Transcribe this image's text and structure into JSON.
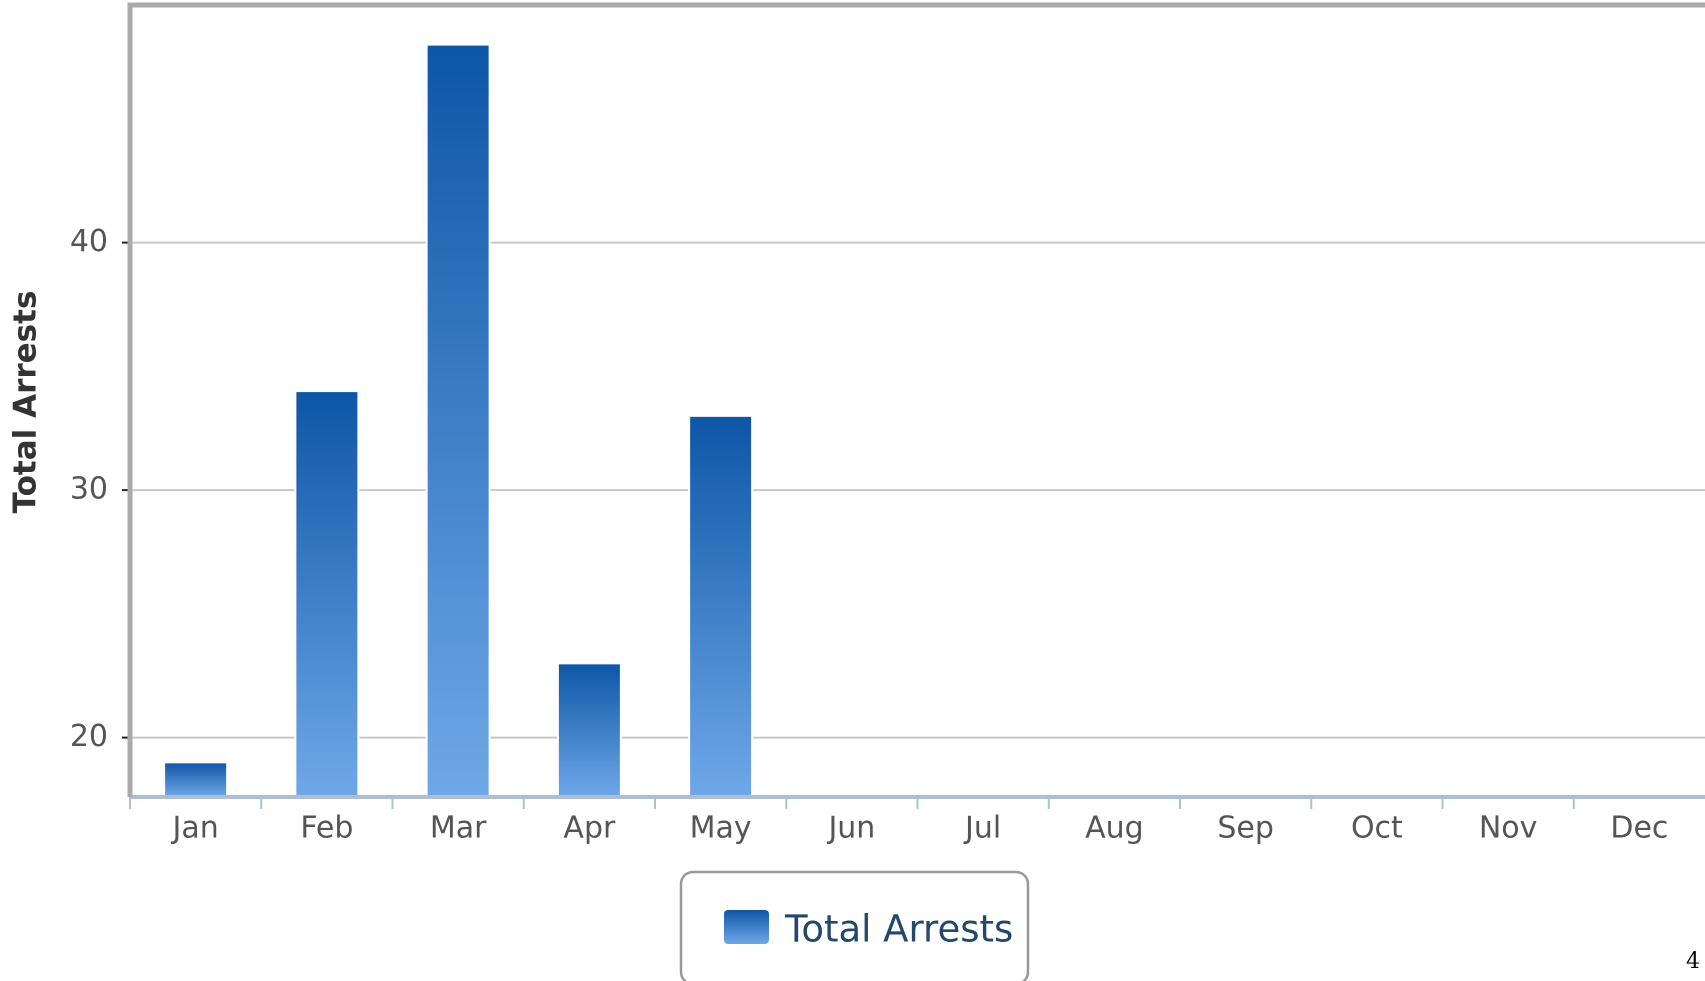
{
  "chart_data": {
    "type": "bar",
    "y_axis_label": "Total Arrests",
    "categories": [
      "Jan",
      "Feb",
      "Mar",
      "Apr",
      "May",
      "Jun",
      "Jul",
      "Aug",
      "Sep",
      "Oct",
      "Nov",
      "Dec"
    ],
    "series": [
      {
        "name": "Total Arrests",
        "color": "#0d56a6",
        "values": [
          19,
          34,
          48,
          23,
          33,
          null,
          null,
          null,
          null,
          null,
          null,
          null
        ]
      }
    ],
    "ylim": [
      17.6,
      49.6
    ],
    "yticks": [
      20,
      30,
      40
    ],
    "grid": true,
    "legend": "bottom",
    "page_number": "4"
  }
}
